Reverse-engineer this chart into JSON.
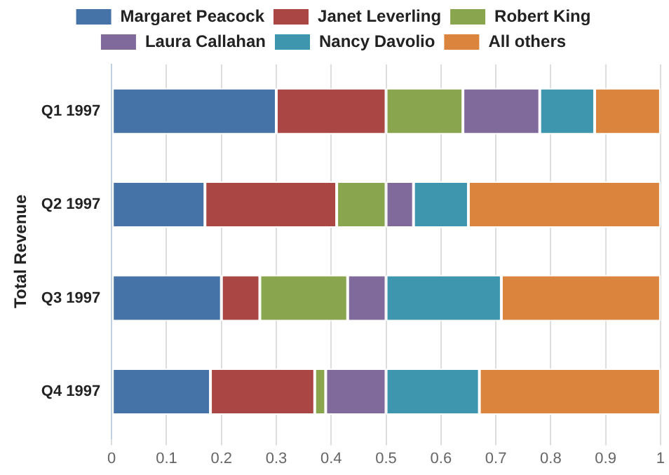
{
  "chart_data": {
    "type": "bar",
    "orientation": "horizontal",
    "stacked": true,
    "ylabel": "Total Revenue",
    "categories": [
      "Q1 1997",
      "Q2 1997",
      "Q3 1997",
      "Q4 1997"
    ],
    "series": [
      {
        "name": "Margaret Peacock",
        "color": "#4572a7",
        "values": [
          0.3,
          0.17,
          0.2,
          0.18
        ]
      },
      {
        "name": "Janet Leverling",
        "color": "#aa4643",
        "values": [
          0.2,
          0.24,
          0.07,
          0.19
        ]
      },
      {
        "name": "Robert King",
        "color": "#89a54e",
        "values": [
          0.14,
          0.09,
          0.16,
          0.02
        ]
      },
      {
        "name": "Laura Callahan",
        "color": "#80699b",
        "values": [
          0.14,
          0.05,
          0.07,
          0.11
        ]
      },
      {
        "name": "Nancy Davolio",
        "color": "#3d96ae",
        "values": [
          0.1,
          0.1,
          0.21,
          0.17
        ]
      },
      {
        "name": "All others",
        "color": "#db843d",
        "values": [
          0.12,
          0.35,
          0.29,
          0.33
        ]
      }
    ],
    "xlim": [
      0,
      1
    ],
    "xticks": [
      0,
      0.1,
      0.2,
      0.3,
      0.4,
      0.5,
      0.6,
      0.7,
      0.8,
      0.9,
      1
    ],
    "grid": "x",
    "legend": "top"
  }
}
